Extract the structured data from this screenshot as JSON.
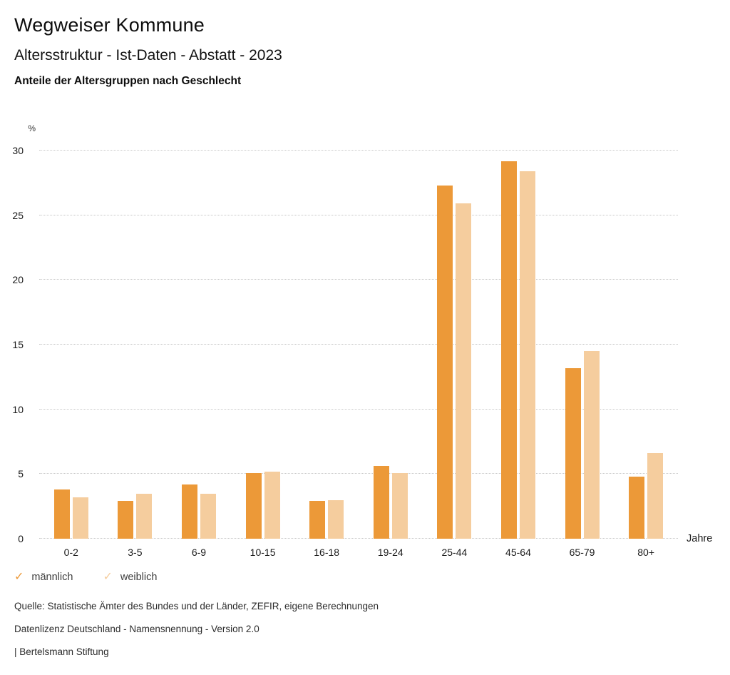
{
  "header": {
    "title": "Wegweiser Kommune",
    "subtitle": "Altersstruktur - Ist-Daten - Abstatt - 2023",
    "description": "Anteile der Altersgruppen nach Geschlecht"
  },
  "chart_data": {
    "type": "bar",
    "title": "Anteile der Altersgruppen nach Geschlecht",
    "categories": [
      "0-2",
      "3-5",
      "6-9",
      "10-15",
      "16-18",
      "19-24",
      "25-44",
      "45-64",
      "65-79",
      "80+"
    ],
    "series": [
      {
        "name": "männlich",
        "color": "#EC9938",
        "values": [
          3.8,
          2.9,
          4.2,
          5.1,
          2.9,
          5.6,
          27.3,
          29.2,
          13.2,
          4.8
        ]
      },
      {
        "name": "weiblich",
        "color": "#F5CD9E",
        "values": [
          3.2,
          3.5,
          3.5,
          5.2,
          3.0,
          5.1,
          25.9,
          28.4,
          14.5,
          6.6
        ]
      }
    ],
    "ylabel": "%",
    "xlabel": "Jahre",
    "ylim": [
      0,
      30
    ],
    "yticks": [
      0,
      5,
      10,
      15,
      20,
      25,
      30
    ],
    "grid": "horizontal-dotted",
    "legend_position": "bottom-left",
    "legend_marker": "checkmark"
  },
  "footer": {
    "source": "Quelle: Statistische Ämter des Bundes und der Länder, ZEFIR, eigene Berechnungen",
    "license": "Datenlizenz Deutschland - Namensnennung - Version 2.0",
    "attribution": "| Bertelsmann Stiftung"
  }
}
